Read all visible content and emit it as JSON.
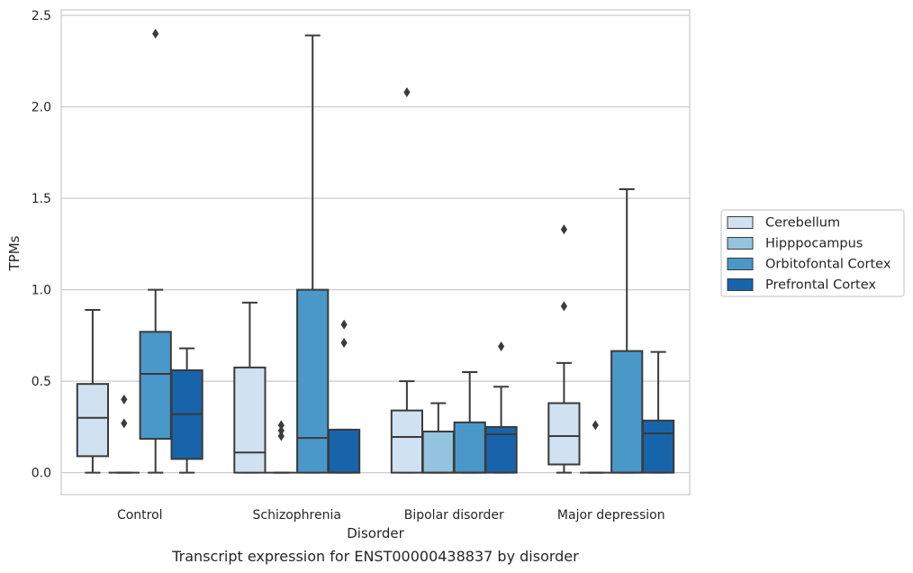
{
  "caption": "Transcript expression for ENST00000438837 by disorder",
  "chart_data": {
    "type": "box",
    "xlabel": "Disorder",
    "ylabel": "TPMs",
    "ylim": [
      -0.12,
      2.53
    ],
    "yticks": [
      0.0,
      0.5,
      1.0,
      1.5,
      2.0,
      2.5
    ],
    "ytick_labels": [
      "0.0",
      "0.5",
      "1.0",
      "1.5",
      "2.0",
      "2.5"
    ],
    "grid": "horizontal",
    "legend_position": "right",
    "categories": [
      "Control",
      "Schizophrenia",
      "Bipolar disorder",
      "Major depression"
    ],
    "series": [
      {
        "name": "Cerebellum",
        "color": "#d0e1f2",
        "boxes": [
          {
            "whislo": 0.0,
            "q1": 0.09,
            "med": 0.3,
            "q3": 0.485,
            "whishi": 0.89,
            "fliers": []
          },
          {
            "whislo": 0.0,
            "q1": 0.0,
            "med": 0.11,
            "q3": 0.575,
            "whishi": 0.93,
            "fliers": []
          },
          {
            "whislo": 0.0,
            "q1": 0.0,
            "med": 0.195,
            "q3": 0.34,
            "whishi": 0.5,
            "fliers": [
              2.08
            ]
          },
          {
            "whislo": 0.0,
            "q1": 0.045,
            "med": 0.2,
            "q3": 0.38,
            "whishi": 0.6,
            "fliers": [
              0.91,
              1.33
            ]
          }
        ]
      },
      {
        "name": "Hipppocampus",
        "color": "#94c4df",
        "boxes": [
          {
            "whislo": 0.0,
            "q1": 0.0,
            "med": 0.0,
            "q3": 0.0,
            "whishi": 0.0,
            "fliers": [
              0.27,
              0.4
            ]
          },
          {
            "whislo": 0.0,
            "q1": 0.0,
            "med": 0.0,
            "q3": 0.0,
            "whishi": 0.0,
            "fliers": [
              0.2,
              0.23,
              0.26
            ]
          },
          {
            "whislo": 0.0,
            "q1": 0.0,
            "med": 0.0,
            "q3": 0.225,
            "whishi": 0.38,
            "fliers": []
          },
          {
            "whislo": 0.0,
            "q1": 0.0,
            "med": 0.0,
            "q3": 0.0,
            "whishi": 0.0,
            "fliers": [
              0.26
            ]
          }
        ]
      },
      {
        "name": "Orbitofontal Cortex",
        "color": "#4a98c9",
        "boxes": [
          {
            "whislo": 0.0,
            "q1": 0.185,
            "med": 0.54,
            "q3": 0.77,
            "whishi": 1.0,
            "fliers": [
              2.4
            ]
          },
          {
            "whislo": 0.0,
            "q1": 0.0,
            "med": 0.19,
            "q3": 1.0,
            "whishi": 2.39,
            "fliers": []
          },
          {
            "whislo": 0.0,
            "q1": 0.0,
            "med": 0.0,
            "q3": 0.275,
            "whishi": 0.55,
            "fliers": []
          },
          {
            "whislo": 0.0,
            "q1": 0.0,
            "med": 0.0,
            "q3": 0.665,
            "whishi": 1.55,
            "fliers": []
          }
        ]
      },
      {
        "name": "Prefrontal Cortex",
        "color": "#1764ab",
        "boxes": [
          {
            "whislo": 0.0,
            "q1": 0.075,
            "med": 0.32,
            "q3": 0.56,
            "whishi": 0.68,
            "fliers": []
          },
          {
            "whislo": 0.0,
            "q1": 0.0,
            "med": 0.0,
            "q3": 0.235,
            "whishi": 0.235,
            "fliers": [
              0.71,
              0.81
            ]
          },
          {
            "whislo": 0.0,
            "q1": 0.0,
            "med": 0.21,
            "q3": 0.25,
            "whishi": 0.47,
            "fliers": [
              0.69
            ]
          },
          {
            "whislo": 0.0,
            "q1": 0.0,
            "med": 0.215,
            "q3": 0.285,
            "whishi": 0.66,
            "fliers": []
          }
        ]
      }
    ]
  }
}
